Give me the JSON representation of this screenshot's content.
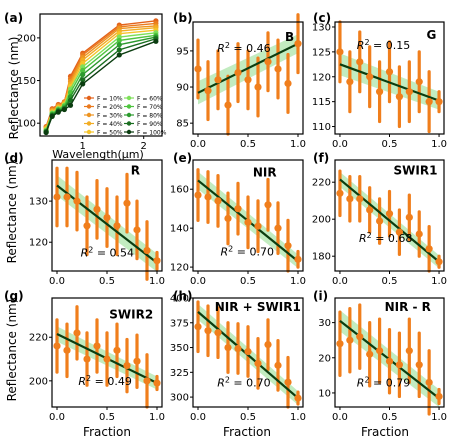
{
  "figure": {
    "ylabel_top": "Reflectance (nm)",
    "ylabel_mid": "Reflectance (nm)",
    "ylabel_bot": "Reflectance (nm)",
    "xlabel": "Fraction"
  },
  "colors": {
    "point": "#f07e1c",
    "fit_line": "#0b3d10",
    "ci_band": "#8fdc8c",
    "axes": "#000000"
  },
  "chart_data": [
    {
      "type": "line",
      "panel": "(a)",
      "title": "",
      "xlabel": "Wavelength(μm)",
      "ylabel": "Reflectance (nm)",
      "x": [
        0.4,
        0.5,
        0.6,
        0.7,
        0.8,
        1.0,
        1.6,
        2.2
      ],
      "xticks": [
        1,
        2
      ],
      "yticks": [
        100,
        150,
        200
      ],
      "xlim": [
        0.3,
        2.3
      ],
      "ylim": [
        85,
        228
      ],
      "grid": false,
      "legend_position": "center-right",
      "series": [
        {
          "name": "F = 10%",
          "color": "#e3621a",
          "values": [
            96,
            117,
            122,
            125,
            155,
            182,
            215,
            220
          ]
        },
        {
          "name": "F = 20%",
          "color": "#ea7a1e",
          "values": [
            95,
            116,
            121,
            125,
            152,
            180,
            213,
            217
          ]
        },
        {
          "name": "F = 30%",
          "color": "#ee9421",
          "values": [
            95,
            115,
            120,
            124,
            149,
            177,
            211,
            214
          ]
        },
        {
          "name": "F = 40%",
          "color": "#f2ad24",
          "values": [
            94,
            114,
            119,
            123,
            146,
            174,
            208,
            212
          ]
        },
        {
          "name": "F = 50%",
          "color": "#f5c42a",
          "values": [
            93,
            113,
            118,
            122,
            143,
            170,
            205,
            209
          ]
        },
        {
          "name": "F = 60%",
          "color": "#7ee05a",
          "values": [
            92,
            112,
            117,
            121,
            140,
            166,
            201,
            206
          ]
        },
        {
          "name": "F = 70%",
          "color": "#4ec43f",
          "values": [
            91,
            111,
            116,
            120,
            136,
            162,
            197,
            203
          ]
        },
        {
          "name": "F = 80%",
          "color": "#2c9a2e",
          "values": [
            90,
            110,
            115,
            118,
            131,
            157,
            192,
            201
          ]
        },
        {
          "name": "F = 90%",
          "color": "#1a6e20",
          "values": [
            90,
            109,
            114,
            117,
            127,
            151,
            186,
            199
          ]
        },
        {
          "name": "F = 100%",
          "color": "#0b3d10",
          "values": [
            89,
            108,
            113,
            116,
            121,
            146,
            180,
            196
          ]
        }
      ]
    },
    {
      "type": "scatter",
      "panel": "(b)",
      "title": "B",
      "r2": "R² = 0.46",
      "xlim": [
        -0.05,
        1.05
      ],
      "ylim": [
        83.5,
        99
      ],
      "xticks": [
        0.0,
        0.5,
        1.0
      ],
      "yticks": [
        85,
        90,
        95
      ],
      "x": [
        0,
        0.1,
        0.2,
        0.3,
        0.4,
        0.5,
        0.6,
        0.7,
        0.8,
        0.9,
        1.0
      ],
      "y": [
        92.5,
        89.5,
        91,
        87.5,
        92,
        91,
        90,
        93.5,
        92.5,
        90.5,
        96
      ],
      "err": [
        4,
        4,
        4,
        4,
        4,
        4,
        4,
        4,
        4,
        4,
        4
      ],
      "fit": [
        89.2,
        96.0
      ],
      "band": [
        1.6,
        1.3
      ]
    },
    {
      "type": "scatter",
      "panel": "(c)",
      "title": "G",
      "r2": "R² = 0.15",
      "xlim": [
        -0.05,
        1.05
      ],
      "ylim": [
        108.5,
        131
      ],
      "xticks": [
        0.0,
        0.5,
        1.0
      ],
      "yticks": [
        110,
        115,
        120,
        125,
        130
      ],
      "x": [
        0,
        0.1,
        0.2,
        0.3,
        0.4,
        0.5,
        0.6,
        0.7,
        0.8,
        0.9,
        1.0
      ],
      "y": [
        125,
        119,
        123,
        120,
        117,
        121,
        116,
        117,
        119,
        115,
        115
      ],
      "err": [
        6,
        6,
        6,
        6,
        6,
        6,
        6,
        6,
        6,
        6,
        2
      ],
      "fit": [
        122.5,
        115.2
      ],
      "band": [
        2.2,
        1.8
      ]
    },
    {
      "type": "scatter",
      "panel": "(d)",
      "title": "R",
      "r2": "R² = 0.54",
      "xlim": [
        -0.05,
        1.05
      ],
      "ylim": [
        113,
        140
      ],
      "xticks": [
        0.0,
        0.5,
        1.0
      ],
      "yticks": [
        120,
        130
      ],
      "x": [
        0,
        0.1,
        0.2,
        0.3,
        0.4,
        0.5,
        0.6,
        0.7,
        0.8,
        0.9,
        1.0
      ],
      "y": [
        131,
        131,
        130,
        124,
        128,
        126,
        124,
        129.5,
        123,
        118,
        115.5
      ],
      "err": [
        7,
        7,
        7,
        7,
        7,
        7,
        7,
        7,
        7,
        7,
        2
      ],
      "fit": [
        133.8,
        115.0
      ],
      "band": [
        2.5,
        2.2
      ]
    },
    {
      "type": "scatter",
      "panel": "(e)",
      "title": "NIR",
      "r2": "R² = 0.70",
      "xlim": [
        -0.05,
        1.05
      ],
      "ylim": [
        118,
        175
      ],
      "xticks": [
        0.0,
        0.5,
        1.0
      ],
      "yticks": [
        120,
        140,
        160
      ],
      "x": [
        0,
        0.1,
        0.2,
        0.3,
        0.4,
        0.5,
        0.6,
        0.7,
        0.8,
        0.9,
        1.0
      ],
      "y": [
        157,
        156,
        154,
        145,
        150,
        143,
        141,
        152,
        140,
        131,
        124
      ],
      "err": [
        13,
        13,
        13,
        13,
        13,
        13,
        13,
        13,
        13,
        13,
        4
      ],
      "fit": [
        164.5,
        123.0
      ],
      "band": [
        4.5,
        3.5
      ]
    },
    {
      "type": "scatter",
      "panel": "(f)",
      "title": "SWIR1",
      "r2": "R² = 0.68",
      "xlim": [
        -0.05,
        1.05
      ],
      "ylim": [
        172,
        232
      ],
      "xticks": [
        0.0,
        0.5,
        1.0
      ],
      "yticks": [
        180,
        200,
        220
      ],
      "x": [
        0,
        0.1,
        0.2,
        0.3,
        0.4,
        0.5,
        0.6,
        0.7,
        0.8,
        0.9,
        1.0
      ],
      "y": [
        214,
        211,
        211,
        205,
        199,
        203,
        193,
        201,
        192,
        184,
        177
      ],
      "err": [
        12,
        12,
        12,
        12,
        12,
        12,
        12,
        12,
        12,
        12,
        3
      ],
      "fit": [
        221.5,
        177.0
      ],
      "band": [
        4,
        3.5
      ]
    },
    {
      "type": "scatter",
      "panel": "(g)",
      "title": "SWIR2",
      "r2": "R² = 0.49",
      "xlim": [
        -0.05,
        1.05
      ],
      "ylim": [
        188,
        238
      ],
      "xticks": [
        0.0,
        0.5,
        1.0
      ],
      "yticks": [
        200,
        220
      ],
      "x": [
        0,
        0.1,
        0.2,
        0.3,
        0.4,
        0.5,
        0.6,
        0.7,
        0.8,
        0.9,
        1.0
      ],
      "y": [
        216,
        214,
        222,
        210,
        216,
        210,
        214,
        207,
        209,
        200,
        199
      ],
      "err": [
        12,
        12,
        12,
        12,
        12,
        12,
        12,
        12,
        12,
        12,
        3
      ],
      "fit": [
        221.5,
        199.0
      ],
      "band": [
        3.5,
        3
      ]
    },
    {
      "type": "scatter",
      "panel": "(h)",
      "title": "NIR + SWIR1",
      "r2": "R² = 0.70",
      "xlim": [
        -0.05,
        1.05
      ],
      "ylim": [
        290,
        400
      ],
      "xticks": [
        0.0,
        0.5,
        1.0
      ],
      "yticks": [
        300,
        325,
        350,
        375,
        400
      ],
      "x": [
        0,
        0.1,
        0.2,
        0.3,
        0.4,
        0.5,
        0.6,
        0.7,
        0.8,
        0.9,
        1.0
      ],
      "y": [
        371,
        367,
        365,
        350,
        349,
        346,
        334,
        353,
        332,
        315,
        299
      ],
      "err": [
        25,
        25,
        25,
        25,
        25,
        25,
        25,
        25,
        25,
        25,
        6
      ],
      "fit": [
        386,
        299
      ],
      "band": [
        8,
        7
      ]
    },
    {
      "type": "scatter",
      "panel": "(i)",
      "title": "NIR - R",
      "r2": "R² = 0.79",
      "xlim": [
        -0.05,
        1.05
      ],
      "ylim": [
        6,
        37
      ],
      "xticks": [
        0.0,
        0.5,
        1.0
      ],
      "yticks": [
        10,
        20,
        30
      ],
      "x": [
        0,
        0.1,
        0.2,
        0.3,
        0.4,
        0.5,
        0.6,
        0.7,
        0.8,
        0.9,
        1.0
      ],
      "y": [
        24,
        25,
        26,
        21,
        22,
        19,
        18,
        22,
        18,
        13,
        9
      ],
      "err": [
        9,
        9,
        9,
        9,
        9,
        9,
        9,
        9,
        9,
        9,
        2
      ],
      "fit": [
        30.5,
        8.5
      ],
      "band": [
        3,
        2.5
      ]
    }
  ]
}
